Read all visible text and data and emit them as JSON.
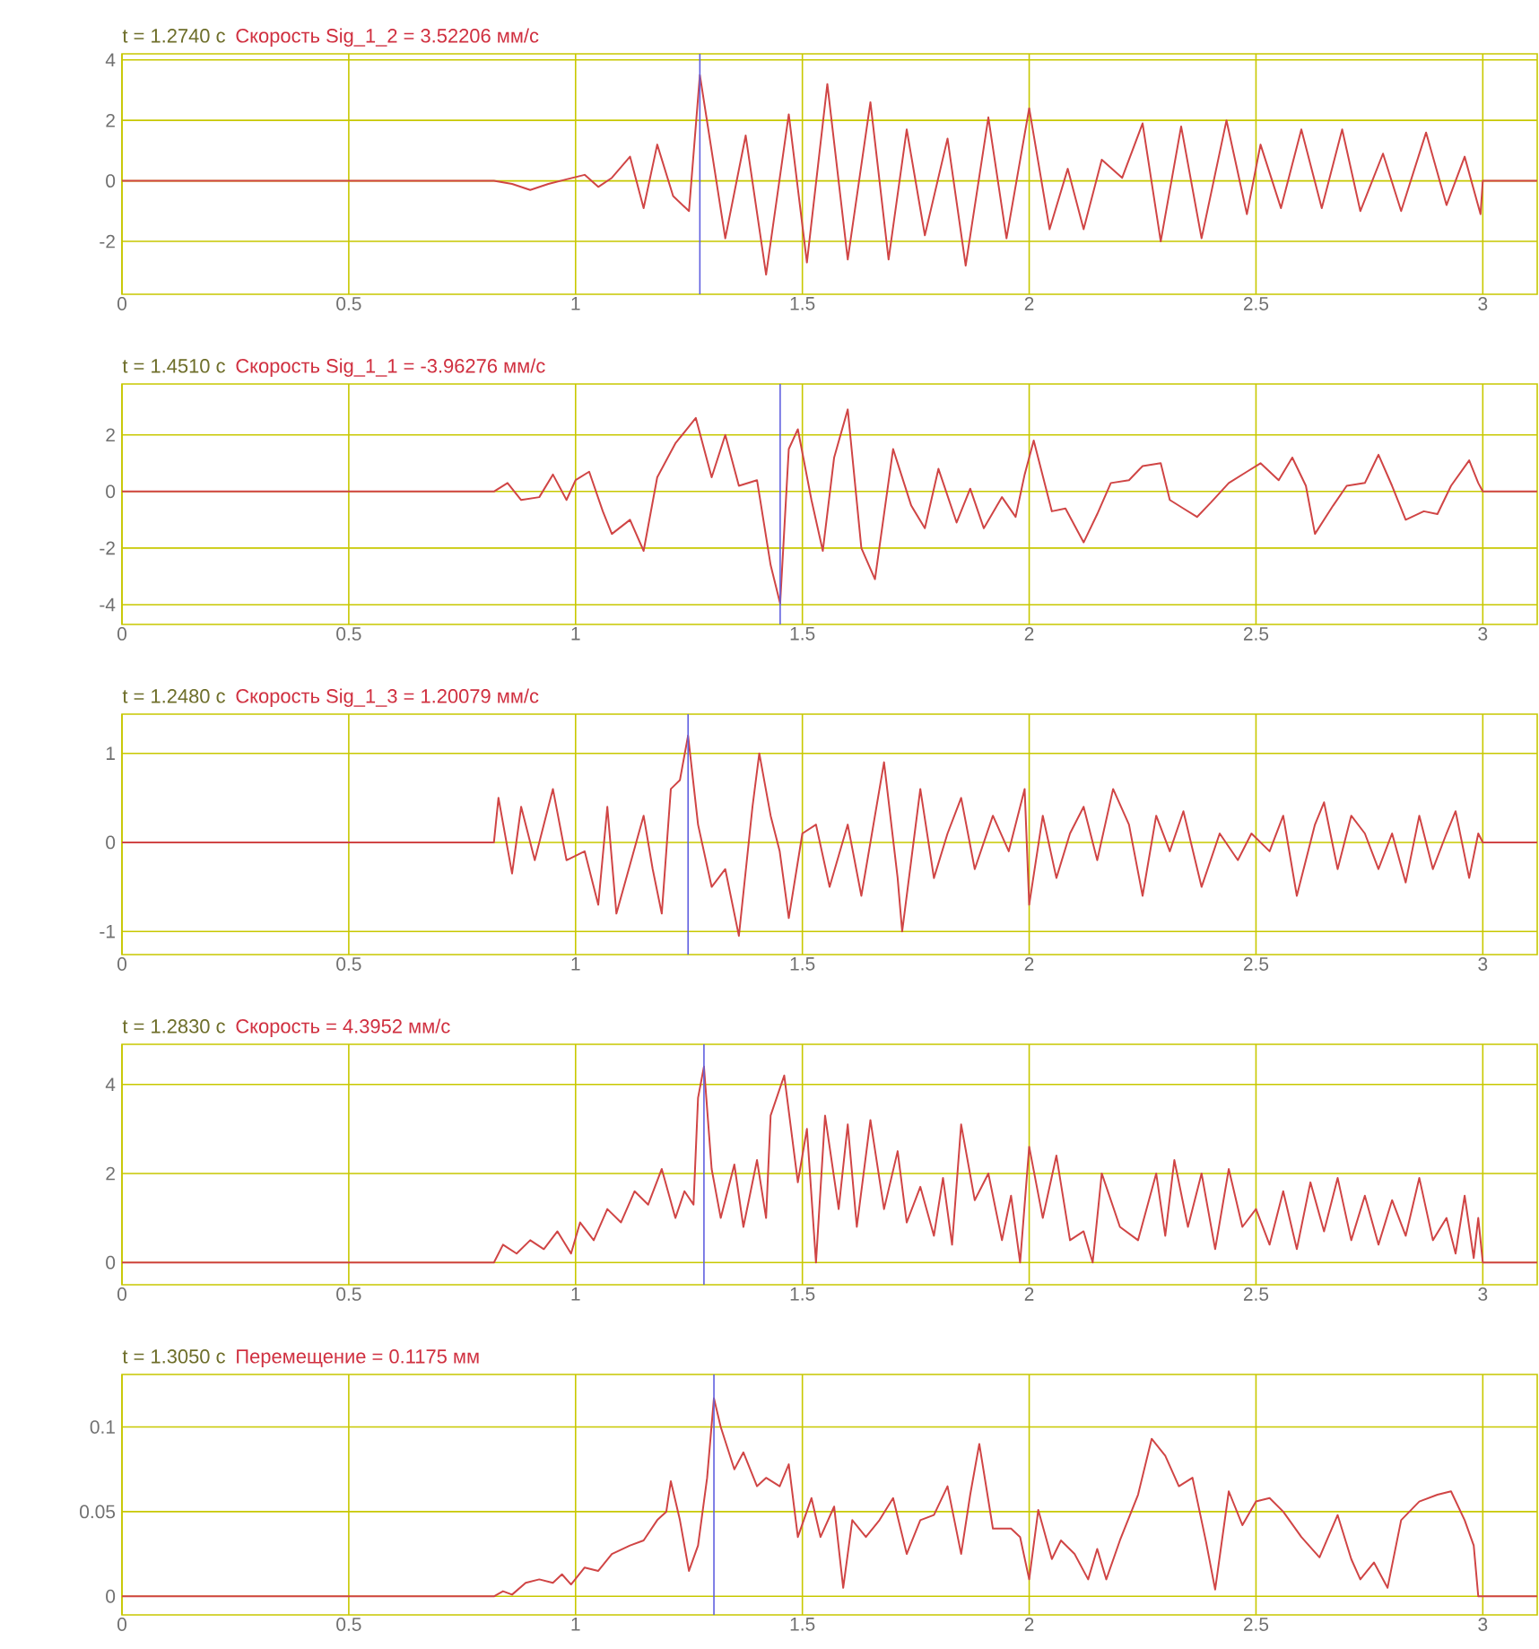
{
  "chart_data": [
    {
      "type": "line",
      "title": "t = 1.2740 с",
      "subtitle": "Скорость Sig_1_2 = 3.52206 мм/с",
      "color": "#d04545",
      "grid": true,
      "xlim": [
        0,
        3.12
      ],
      "ylim": [
        -3.75,
        4.2
      ],
      "xticks": [
        0,
        0.5,
        1,
        1.5,
        2,
        2.5,
        3
      ],
      "yticks": [
        -2,
        0,
        2,
        4
      ],
      "ref_lines": [
        {
          "axis": "x",
          "value": 1.274,
          "color": "#6060e0"
        }
      ],
      "x": [
        0,
        0.82,
        0.86,
        0.9,
        0.94,
        0.98,
        1.02,
        1.05,
        1.08,
        1.12,
        1.15,
        1.18,
        1.215,
        1.25,
        1.274,
        1.33,
        1.375,
        1.42,
        1.47,
        1.51,
        1.555,
        1.6,
        1.65,
        1.69,
        1.73,
        1.77,
        1.82,
        1.86,
        1.91,
        1.95,
        2.0,
        2.045,
        2.085,
        2.12,
        2.16,
        2.205,
        2.25,
        2.29,
        2.335,
        2.38,
        2.435,
        2.48,
        2.51,
        2.555,
        2.6,
        2.645,
        2.69,
        2.73,
        2.78,
        2.82,
        2.875,
        2.92,
        2.96,
        2.995,
        3.0,
        3.12
      ],
      "values": [
        0,
        0,
        -0.1,
        -0.3,
        -0.1,
        0.05,
        0.2,
        -0.2,
        0.1,
        0.8,
        -0.9,
        1.2,
        -0.5,
        -1.0,
        3.5,
        -1.9,
        1.5,
        -3.1,
        2.2,
        -2.7,
        3.2,
        -2.6,
        2.6,
        -2.6,
        1.7,
        -1.8,
        1.4,
        -2.8,
        2.1,
        -1.9,
        2.4,
        -1.6,
        0.4,
        -1.6,
        0.7,
        0.1,
        1.9,
        -2.0,
        1.8,
        -1.9,
        2.0,
        -1.1,
        1.2,
        -0.9,
        1.7,
        -0.9,
        1.7,
        -1.0,
        0.9,
        -1.0,
        1.6,
        -0.8,
        0.8,
        -1.1,
        0,
        0
      ]
    },
    {
      "type": "line",
      "title": "t = 1.4510 с",
      "subtitle": "Скорость Sig_1_1 = -3.96276 мм/с",
      "color": "#d04545",
      "grid": true,
      "xlim": [
        0,
        3.12
      ],
      "ylim": [
        -4.7,
        3.8
      ],
      "xticks": [
        0,
        0.5,
        1,
        1.5,
        2,
        2.5,
        3
      ],
      "yticks": [
        -4,
        -2,
        0,
        2
      ],
      "ref_lines": [
        {
          "axis": "x",
          "value": 1.451,
          "color": "#6060e0"
        }
      ],
      "x": [
        0,
        0.82,
        0.85,
        0.88,
        0.92,
        0.95,
        0.98,
        1.0,
        1.03,
        1.06,
        1.08,
        1.12,
        1.15,
        1.18,
        1.22,
        1.265,
        1.3,
        1.33,
        1.36,
        1.4,
        1.43,
        1.451,
        1.47,
        1.49,
        1.52,
        1.545,
        1.57,
        1.6,
        1.63,
        1.66,
        1.7,
        1.74,
        1.77,
        1.8,
        1.84,
        1.87,
        1.9,
        1.94,
        1.97,
        1.99,
        2.01,
        2.05,
        2.08,
        2.12,
        2.15,
        2.18,
        2.22,
        2.25,
        2.29,
        2.31,
        2.34,
        2.37,
        2.4,
        2.44,
        2.48,
        2.51,
        2.55,
        2.58,
        2.61,
        2.63,
        2.67,
        2.7,
        2.74,
        2.77,
        2.8,
        2.83,
        2.87,
        2.9,
        2.93,
        2.97,
        2.99,
        3.0,
        3.12
      ],
      "values": [
        0,
        0,
        0.3,
        -0.3,
        -0.2,
        0.6,
        -0.3,
        0.4,
        0.7,
        -0.7,
        -1.5,
        -1.0,
        -2.1,
        0.5,
        1.7,
        2.6,
        0.5,
        2.0,
        0.2,
        0.4,
        -2.6,
        -3.96,
        1.5,
        2.2,
        -0.3,
        -2.1,
        1.2,
        2.9,
        -2.0,
        -3.1,
        1.5,
        -0.5,
        -1.3,
        0.8,
        -1.1,
        0.1,
        -1.3,
        -0.2,
        -0.9,
        0.6,
        1.8,
        -0.7,
        -0.6,
        -1.8,
        -0.8,
        0.3,
        0.4,
        0.9,
        1.0,
        -0.3,
        -0.6,
        -0.9,
        -0.4,
        0.3,
        0.7,
        1.0,
        0.4,
        1.2,
        0.2,
        -1.5,
        -0.5,
        0.2,
        0.3,
        1.3,
        0.2,
        -1.0,
        -0.7,
        -0.8,
        0.2,
        1.1,
        0.3,
        0,
        0
      ]
    },
    {
      "type": "line",
      "title": "t = 1.2480 с",
      "subtitle": "Скорость Sig_1_3 = 1.20079 мм/с",
      "color": "#d04545",
      "grid": true,
      "xlim": [
        0,
        3.12
      ],
      "ylim": [
        -1.26,
        1.44
      ],
      "xticks": [
        0,
        0.5,
        1,
        1.5,
        2,
        2.5,
        3
      ],
      "yticks": [
        -1,
        0,
        1
      ],
      "ref_lines": [
        {
          "axis": "x",
          "value": 1.248,
          "color": "#6060e0"
        }
      ],
      "x": [
        0,
        0.82,
        0.83,
        0.86,
        0.88,
        0.91,
        0.95,
        0.98,
        1.02,
        1.05,
        1.07,
        1.09,
        1.12,
        1.15,
        1.17,
        1.19,
        1.21,
        1.23,
        1.248,
        1.27,
        1.3,
        1.33,
        1.36,
        1.39,
        1.405,
        1.43,
        1.45,
        1.47,
        1.5,
        1.53,
        1.56,
        1.6,
        1.63,
        1.66,
        1.68,
        1.71,
        1.72,
        1.76,
        1.79,
        1.82,
        1.85,
        1.88,
        1.92,
        1.955,
        1.99,
        2.0,
        2.03,
        2.06,
        2.09,
        2.12,
        2.15,
        2.185,
        2.22,
        2.25,
        2.28,
        2.31,
        2.34,
        2.38,
        2.42,
        2.46,
        2.49,
        2.53,
        2.56,
        2.59,
        2.63,
        2.65,
        2.68,
        2.71,
        2.74,
        2.77,
        2.8,
        2.83,
        2.86,
        2.89,
        2.92,
        2.94,
        2.97,
        2.99,
        3.0,
        3.12
      ],
      "values": [
        0,
        0,
        0.5,
        -0.35,
        0.4,
        -0.2,
        0.6,
        -0.2,
        -0.1,
        -0.7,
        0.4,
        -0.8,
        -0.25,
        0.3,
        -0.3,
        -0.8,
        0.6,
        0.7,
        1.2,
        0.2,
        -0.5,
        -0.3,
        -1.05,
        0.4,
        1.0,
        0.3,
        -0.1,
        -0.85,
        0.1,
        0.2,
        -0.5,
        0.2,
        -0.6,
        0.3,
        0.9,
        -0.4,
        -1.0,
        0.6,
        -0.4,
        0.1,
        0.5,
        -0.3,
        0.3,
        -0.1,
        0.6,
        -0.7,
        0.3,
        -0.4,
        0.1,
        0.4,
        -0.2,
        0.6,
        0.2,
        -0.6,
        0.3,
        -0.1,
        0.35,
        -0.5,
        0.1,
        -0.2,
        0.1,
        -0.1,
        0.3,
        -0.6,
        0.2,
        0.45,
        -0.3,
        0.3,
        0.1,
        -0.3,
        0.1,
        -0.45,
        0.3,
        -0.3,
        0.1,
        0.35,
        -0.4,
        0.1,
        0,
        0
      ]
    },
    {
      "type": "line",
      "title": "t = 1.2830 с",
      "subtitle": "Скорость =  4.3952 мм/с",
      "color": "#d04545",
      "grid": true,
      "xlim": [
        0,
        3.12
      ],
      "ylim": [
        -0.5,
        4.9
      ],
      "xticks": [
        0,
        0.5,
        1,
        1.5,
        2,
        2.5,
        3
      ],
      "yticks": [
        0,
        2,
        4
      ],
      "ref_lines": [
        {
          "axis": "x",
          "value": 1.283,
          "color": "#6060e0"
        }
      ],
      "x": [
        0,
        0.82,
        0.84,
        0.87,
        0.9,
        0.93,
        0.96,
        0.99,
        1.01,
        1.04,
        1.07,
        1.1,
        1.13,
        1.16,
        1.19,
        1.22,
        1.24,
        1.26,
        1.27,
        1.283,
        1.3,
        1.32,
        1.35,
        1.37,
        1.4,
        1.42,
        1.43,
        1.46,
        1.49,
        1.51,
        1.53,
        1.55,
        1.58,
        1.6,
        1.62,
        1.65,
        1.68,
        1.71,
        1.73,
        1.76,
        1.79,
        1.81,
        1.83,
        1.85,
        1.88,
        1.91,
        1.94,
        1.96,
        1.98,
        2.0,
        2.03,
        2.06,
        2.09,
        2.12,
        2.14,
        2.16,
        2.2,
        2.24,
        2.28,
        2.3,
        2.32,
        2.35,
        2.38,
        2.41,
        2.44,
        2.47,
        2.5,
        2.53,
        2.56,
        2.59,
        2.62,
        2.65,
        2.68,
        2.71,
        2.74,
        2.77,
        2.8,
        2.83,
        2.86,
        2.89,
        2.92,
        2.94,
        2.96,
        2.98,
        2.99,
        3.0,
        3.12
      ],
      "values": [
        0,
        0,
        0.4,
        0.2,
        0.5,
        0.3,
        0.7,
        0.2,
        0.9,
        0.5,
        1.2,
        0.9,
        1.6,
        1.3,
        2.1,
        1.0,
        1.6,
        1.3,
        3.7,
        4.4,
        2.1,
        1.0,
        2.2,
        0.8,
        2.3,
        1.0,
        3.3,
        4.2,
        1.8,
        3.0,
        0,
        3.3,
        1.2,
        3.1,
        0.8,
        3.2,
        1.2,
        2.5,
        0.9,
        1.7,
        0.6,
        1.9,
        0.4,
        3.1,
        1.4,
        2.0,
        0.5,
        1.5,
        0,
        2.6,
        1.0,
        2.4,
        0.5,
        0.7,
        0,
        2.0,
        0.8,
        0.5,
        2.0,
        0.6,
        2.3,
        0.8,
        2.0,
        0.3,
        2.1,
        0.8,
        1.2,
        0.4,
        1.6,
        0.3,
        1.8,
        0.7,
        1.9,
        0.5,
        1.5,
        0.4,
        1.4,
        0.6,
        1.9,
        0.5,
        1.0,
        0.2,
        1.5,
        0.1,
        1.0,
        0,
        0
      ]
    },
    {
      "type": "line",
      "title": "t = 1.3050 с",
      "subtitle": "Перемещение =  0.1175 мм",
      "color": "#d04545",
      "grid": true,
      "xlim": [
        0,
        3.12
      ],
      "ylim": [
        -0.011,
        0.131
      ],
      "xticks": [
        0,
        0.5,
        1,
        1.5,
        2,
        2.5,
        3
      ],
      "yticks": [
        0,
        0.05,
        0.1
      ],
      "ref_lines": [
        {
          "axis": "x",
          "value": 1.305,
          "color": "#6060e0"
        }
      ],
      "x": [
        0,
        0.82,
        0.84,
        0.86,
        0.89,
        0.92,
        0.95,
        0.97,
        0.99,
        1.02,
        1.05,
        1.08,
        1.12,
        1.15,
        1.18,
        1.2,
        1.21,
        1.23,
        1.25,
        1.27,
        1.29,
        1.305,
        1.32,
        1.35,
        1.37,
        1.4,
        1.42,
        1.45,
        1.47,
        1.49,
        1.52,
        1.54,
        1.57,
        1.59,
        1.61,
        1.64,
        1.67,
        1.7,
        1.73,
        1.76,
        1.79,
        1.82,
        1.85,
        1.87,
        1.89,
        1.92,
        1.96,
        1.98,
        2.0,
        2.02,
        2.05,
        2.07,
        2.1,
        2.13,
        2.15,
        2.17,
        2.2,
        2.24,
        2.27,
        2.3,
        2.33,
        2.36,
        2.39,
        2.41,
        2.44,
        2.47,
        2.5,
        2.53,
        2.56,
        2.6,
        2.64,
        2.68,
        2.71,
        2.73,
        2.76,
        2.79,
        2.82,
        2.86,
        2.9,
        2.93,
        2.96,
        2.98,
        2.99,
        3.0,
        3.12
      ],
      "values": [
        0,
        0,
        0.003,
        0.001,
        0.008,
        0.01,
        0.008,
        0.013,
        0.007,
        0.017,
        0.015,
        0.025,
        0.03,
        0.033,
        0.045,
        0.05,
        0.068,
        0.045,
        0.015,
        0.03,
        0.07,
        0.117,
        0.1,
        0.075,
        0.085,
        0.065,
        0.07,
        0.065,
        0.078,
        0.035,
        0.058,
        0.035,
        0.053,
        0.005,
        0.045,
        0.035,
        0.045,
        0.058,
        0.025,
        0.045,
        0.048,
        0.065,
        0.025,
        0.06,
        0.09,
        0.04,
        0.04,
        0.035,
        0.01,
        0.051,
        0.022,
        0.033,
        0.025,
        0.01,
        0.028,
        0.01,
        0.033,
        0.06,
        0.093,
        0.083,
        0.065,
        0.07,
        0.032,
        0.004,
        0.062,
        0.042,
        0.056,
        0.058,
        0.05,
        0.035,
        0.023,
        0.048,
        0.022,
        0.01,
        0.02,
        0.005,
        0.045,
        0.056,
        0.06,
        0.062,
        0.045,
        0.03,
        0,
        0,
        0
      ]
    }
  ]
}
